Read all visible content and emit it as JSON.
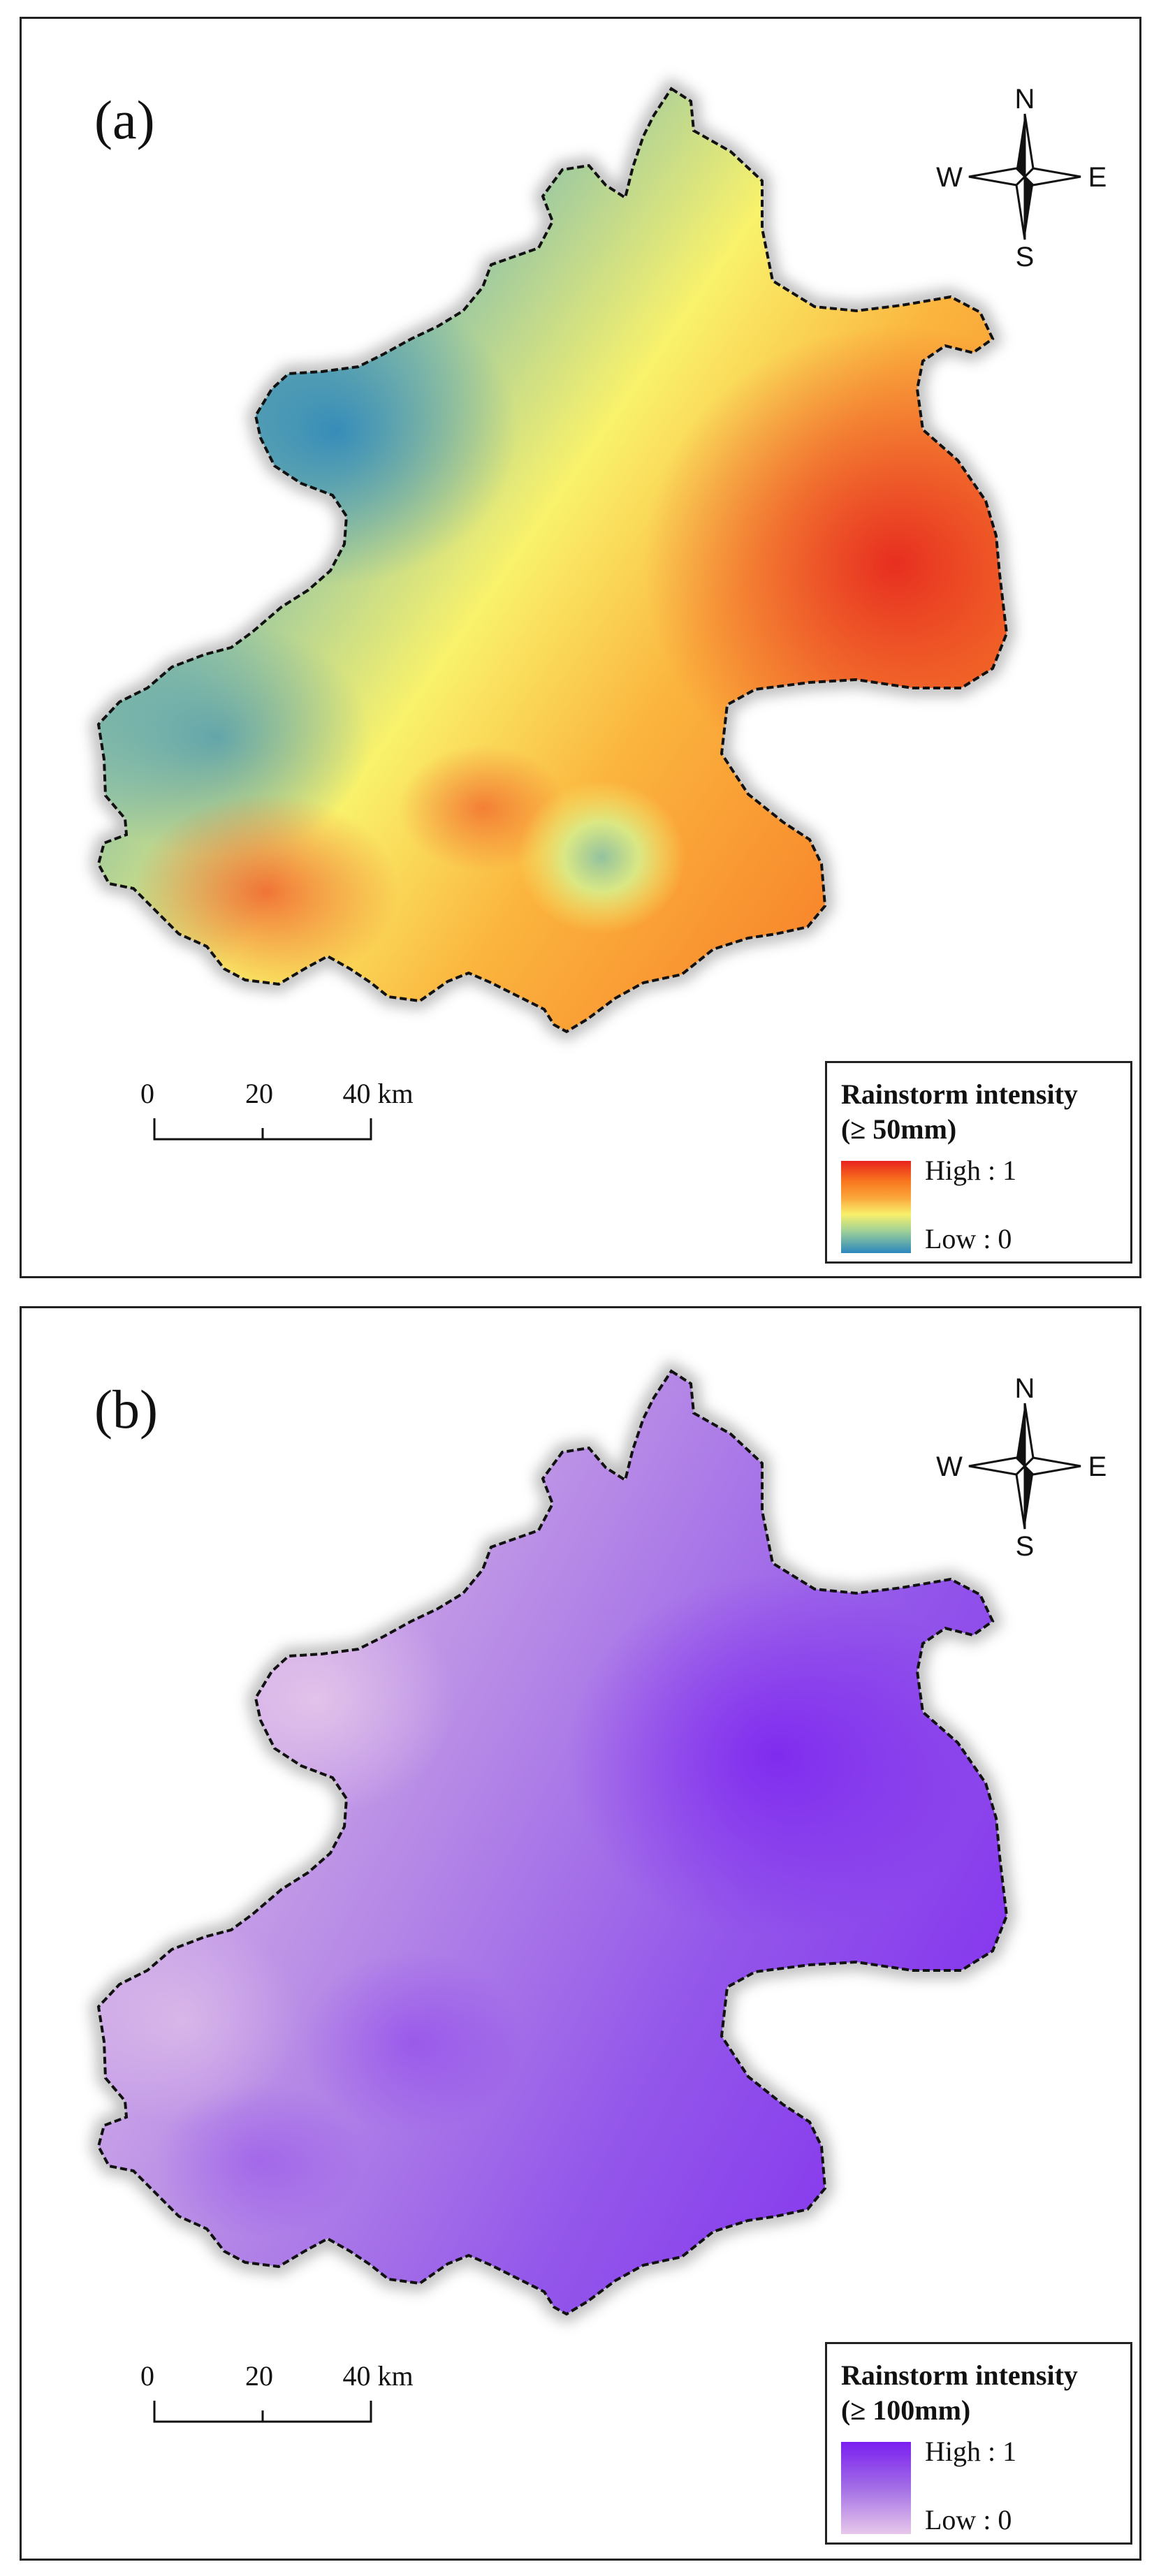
{
  "panels": [
    {
      "label": "(a)",
      "legend": {
        "title_line1": "Rainstorm intensity",
        "title_line2": "(≥ 50mm)",
        "high": "High : 1",
        "low": "Low : 0"
      },
      "scale": {
        "ticks": [
          "0",
          "20",
          "40 km"
        ]
      },
      "compass": {
        "n": "N",
        "s": "S",
        "e": "E",
        "w": "W"
      },
      "colors": {
        "high": "#e8231e",
        "mid": "#f8f06a",
        "low": "#2b87bd"
      }
    },
    {
      "label": "(b)",
      "legend": {
        "title_line1": "Rainstorm intensity",
        "title_line2": "(≥ 100mm)",
        "high": "High : 1",
        "low": "Low : 0"
      },
      "scale": {
        "ticks": [
          "0",
          "20",
          "40 km"
        ]
      },
      "compass": {
        "n": "N",
        "s": "S",
        "e": "E",
        "w": "W"
      },
      "colors": {
        "high": "#7a1ff0",
        "mid": "#a36ee6",
        "low": "#e7c8ea"
      }
    }
  ]
}
